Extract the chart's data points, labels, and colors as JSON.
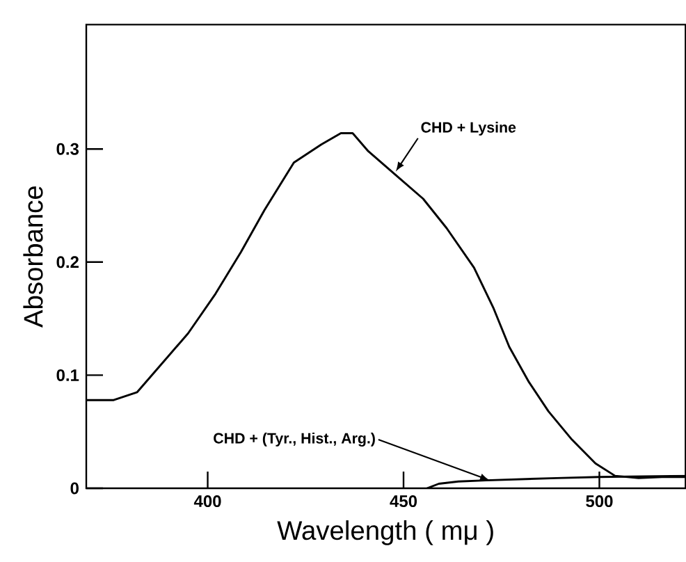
{
  "chart_data": {
    "type": "line",
    "xlabel": "Wavelength ( mμ )",
    "ylabel": "Absorbance",
    "xlim": [
      369,
      522
    ],
    "ylim": [
      0,
      0.41
    ],
    "xticks": [
      400,
      450,
      500
    ],
    "yticks": [
      0,
      0.1,
      0.2,
      0.3
    ],
    "grid": false,
    "marker": "none",
    "line_style": "solid",
    "series": [
      {
        "color": "#000000",
        "x": [
          369,
          376,
          382,
          388,
          395,
          402,
          408.5,
          414.5,
          422,
          429,
          434,
          437,
          441,
          448,
          455,
          461,
          468,
          473,
          477,
          482,
          487,
          493,
          499,
          504,
          510,
          516,
          522
        ],
        "values": [
          0.078,
          0.078,
          0.085,
          0.109,
          0.137,
          0.172,
          0.209,
          0.246,
          0.288,
          0.304,
          0.314,
          0.314,
          0.298,
          0.277,
          0.256,
          0.23,
          0.195,
          0.159,
          0.125,
          0.094,
          0.068,
          0.043,
          0.022,
          0.011,
          0.009,
          0.01,
          0.01
        ]
      },
      {
        "color": "#000000",
        "x": [
          456,
          459,
          464,
          471,
          489,
          500,
          522
        ],
        "values": [
          0,
          0.004,
          0.006,
          0.007,
          0.009,
          0.01,
          0.011
        ]
      }
    ],
    "annotations": [
      {
        "text": "CHD + Lysine",
        "x": 448,
        "y": 0.28
      },
      {
        "text": "CHD + (Tyr., Hist., Arg.)",
        "x": 472,
        "y": 0.007
      }
    ]
  }
}
